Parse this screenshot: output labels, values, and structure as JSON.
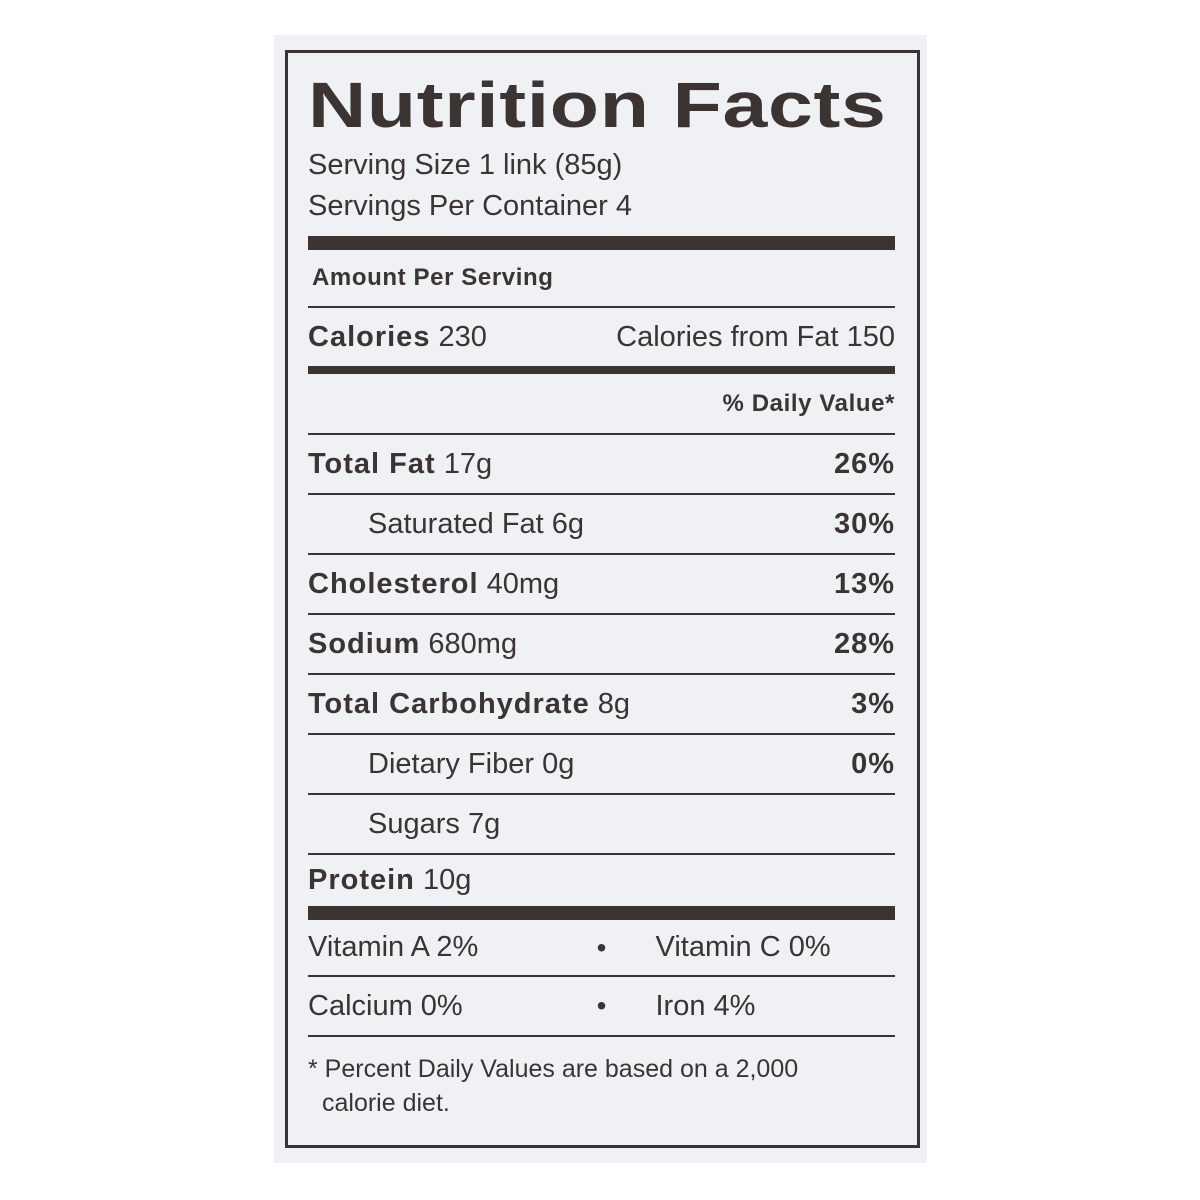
{
  "title": "Nutrition Facts",
  "serving_size": "Serving Size 1 link (85g)",
  "servings_per_container": "Servings Per Container 4",
  "amount_per_serving": "Amount Per Serving",
  "calories": {
    "label": "Calories",
    "value": "230",
    "from_fat": "Calories from Fat 150"
  },
  "daily_value_header": "% Daily Value*",
  "nutrients": [
    {
      "label": "Total Fat",
      "amount": "17g",
      "dv": "26%",
      "bold": true
    },
    {
      "label": "Saturated Fat",
      "amount": "6g",
      "dv": "30%",
      "bold": false
    },
    {
      "label": "Cholesterol",
      "amount": "40mg",
      "dv": "13%",
      "bold": true
    },
    {
      "label": "Sodium",
      "amount": "680mg",
      "dv": "28%",
      "bold": true
    },
    {
      "label": "Total Carbohydrate",
      "amount": "8g",
      "dv": "3%",
      "bold": true
    },
    {
      "label": "Dietary Fiber",
      "amount": "0g",
      "dv": "0%",
      "bold": false
    },
    {
      "label": "Sugars",
      "amount": "7g",
      "dv": "",
      "bold": false
    }
  ],
  "protein": {
    "label": "Protein",
    "amount": "10g"
  },
  "vitamins": [
    {
      "left": "Vitamin A 2%",
      "separator": "•",
      "right": "Vitamin C 0%"
    },
    {
      "left": "Calcium 0%",
      "separator": "•",
      "right": "Iron 4%"
    }
  ],
  "footnote": {
    "line1": "* Percent Daily Values are based on a 2,000",
    "line2": "calorie diet."
  },
  "colors": {
    "ink": "#3b3433",
    "panel": "#eff1f4"
  }
}
